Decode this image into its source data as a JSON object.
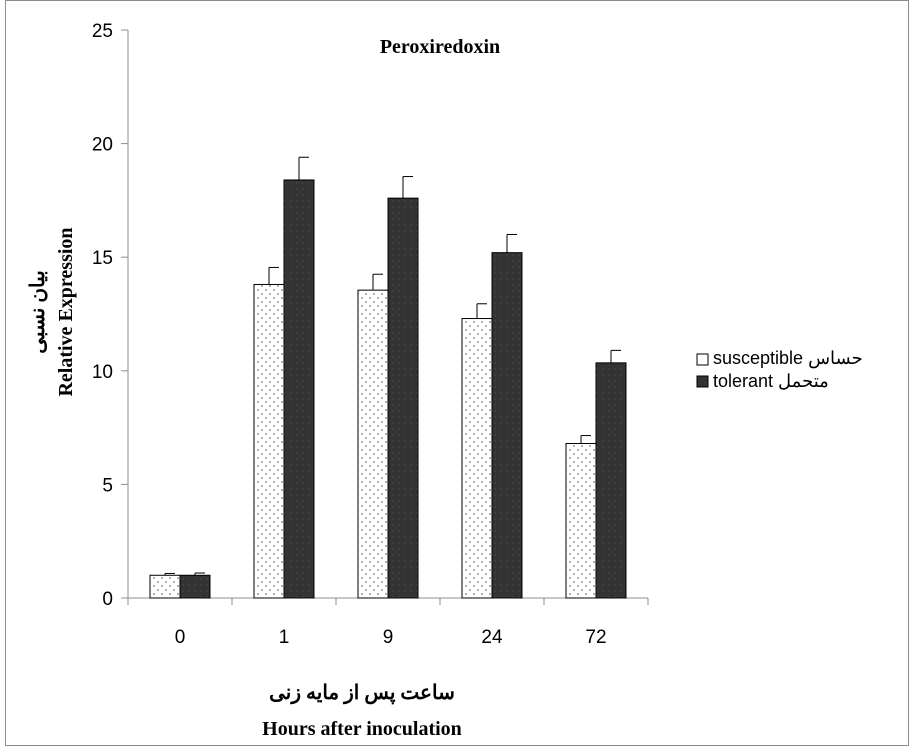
{
  "chart_data": {
    "type": "bar",
    "title": "Peroxiredoxin",
    "categories": [
      "0",
      "1",
      "9",
      "24",
      "72"
    ],
    "series": [
      {
        "name": "susceptible حساس",
        "values": [
          1.0,
          13.8,
          13.55,
          12.3,
          6.8
        ],
        "errors": [
          0.08,
          0.75,
          0.7,
          0.65,
          0.35
        ],
        "color": "#ffffff",
        "pattern": "dotted"
      },
      {
        "name": "tolerant متحمل",
        "values": [
          1.0,
          18.4,
          17.6,
          15.2,
          10.35
        ],
        "errors": [
          0.1,
          1.0,
          0.95,
          0.8,
          0.55
        ],
        "color": "#3a3a3a",
        "pattern": "solid-dark"
      }
    ],
    "ylabel_fa": "بیان نسبی",
    "ylabel_en": "Relative Expression",
    "xlabel_fa": "ساعت پس از مایه زنی",
    "xlabel_en": "Hours after inoculation",
    "ylim": [
      0,
      25
    ],
    "yticks": [
      "0",
      "5",
      "10",
      "15",
      "20",
      "25"
    ],
    "grid": false,
    "legend_position": "right"
  }
}
